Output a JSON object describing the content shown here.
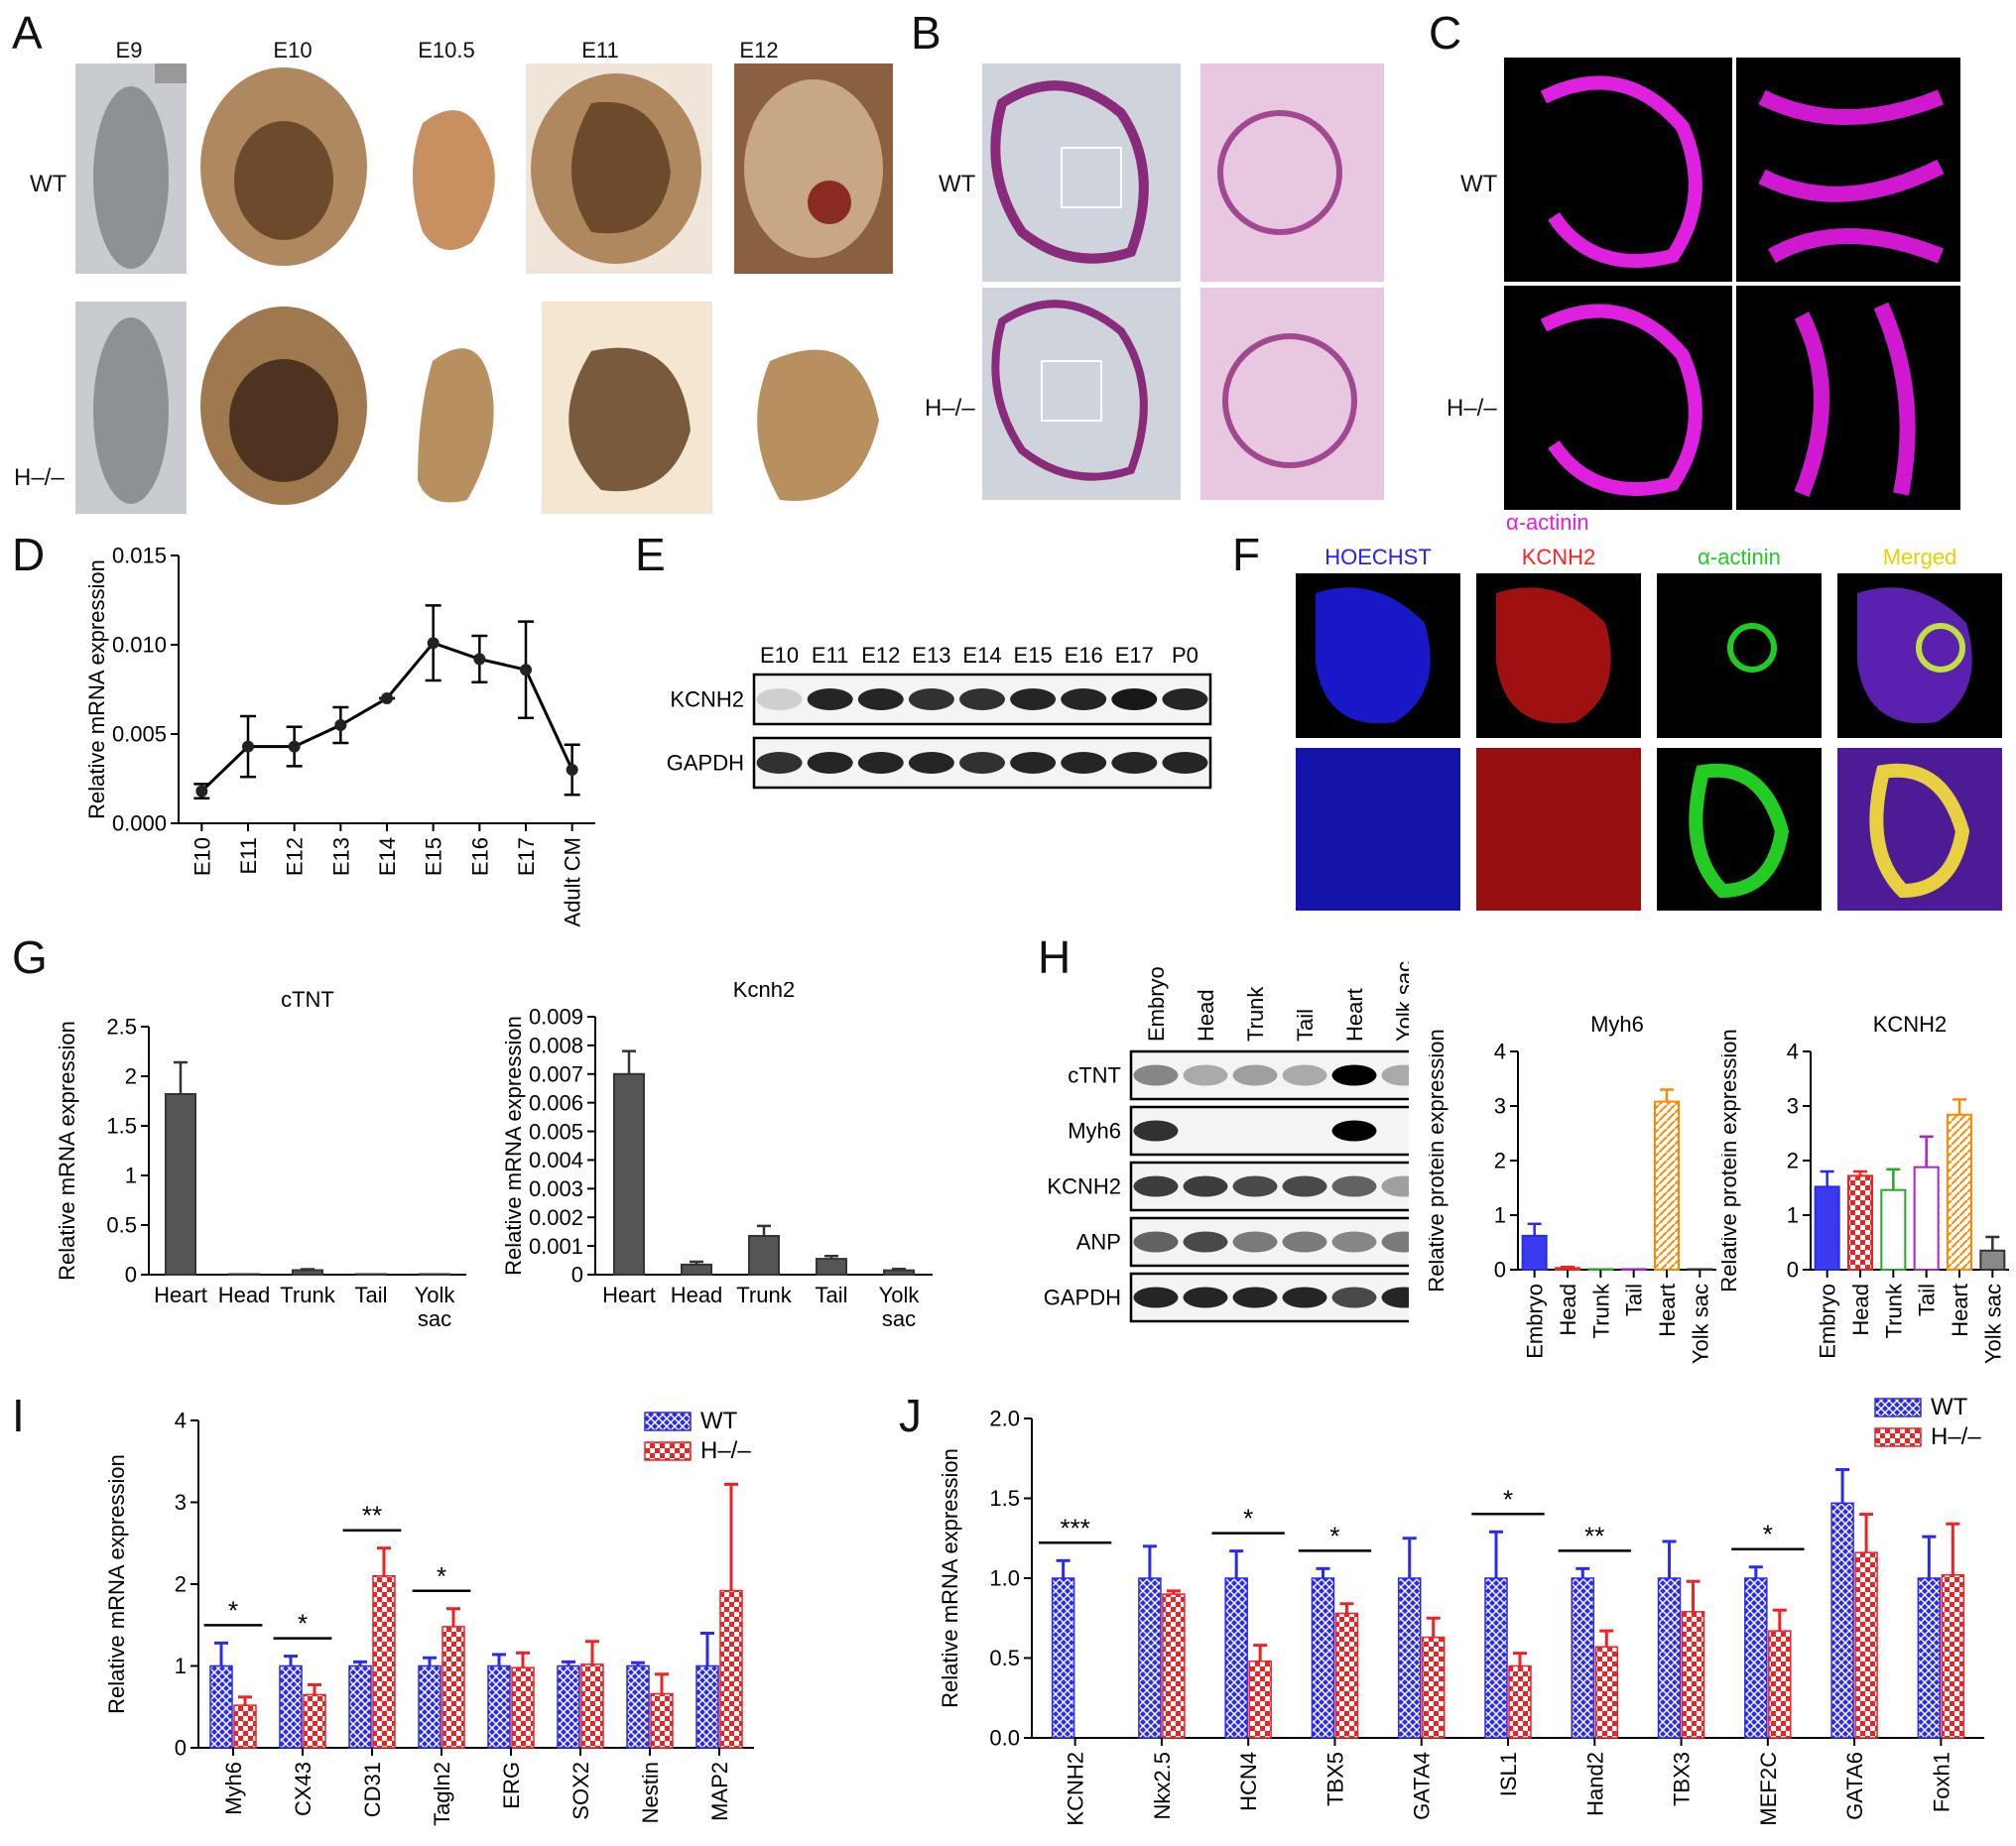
{
  "panels": {
    "A": "A",
    "B": "B",
    "C": "C",
    "D": "D",
    "E": "E",
    "F": "F",
    "G": "G",
    "H": "H",
    "I": "I",
    "J": "J"
  },
  "panelA": {
    "stages": [
      "E9",
      "E10",
      "E10.5",
      "E11",
      "E12"
    ],
    "rows": [
      "WT",
      "H–/–"
    ]
  },
  "panelB": {
    "rows": [
      "WT",
      "H–/–"
    ]
  },
  "panelC": {
    "rows": [
      "WT",
      "H–/–"
    ],
    "stain": "α-actinin"
  },
  "panelE": {
    "lanes": [
      "E10",
      "E11",
      "E12",
      "E13",
      "E14",
      "E15",
      "E16",
      "E17",
      "P0"
    ],
    "rows": [
      "KCNH2",
      "GAPDH"
    ]
  },
  "panelF": {
    "channels": [
      "HOECHST",
      "KCNH2",
      "α-actinin",
      "Merged"
    ],
    "channel_colors": [
      "#1f1fff",
      "#ff2020",
      "#22cc22",
      "#e8d000"
    ]
  },
  "panelH": {
    "lanes": [
      "Embryo",
      "Head",
      "Trunk",
      "Tail",
      "Heart",
      "Yolk sac"
    ],
    "rows": [
      "cTNT",
      "Myh6",
      "KCNH2",
      "ANP",
      "GAPDH"
    ]
  },
  "colors": {
    "wt": "#2a2aee",
    "ko": "#ee2222",
    "gray": "#555555"
  },
  "chart_data": [
    {
      "id": "D",
      "type": "line",
      "categories": [
        "E10",
        "E11",
        "E12",
        "E13",
        "E14",
        "E15",
        "E16",
        "E17",
        "Adult CM"
      ],
      "values": [
        0.0018,
        0.0043,
        0.0043,
        0.0055,
        0.007,
        0.0101,
        0.0092,
        0.0086,
        0.003
      ],
      "errors": [
        0.0004,
        0.0017,
        0.0011,
        0.001,
        0.0,
        0.0021,
        0.0013,
        0.0027,
        0.0014
      ],
      "ylabel": "Relative mRNA expression",
      "yticks": [
        "0.000",
        "0.005",
        "0.010",
        "0.015"
      ],
      "ylim": [
        0,
        0.015
      ]
    },
    {
      "id": "G1",
      "type": "bar",
      "title": "cTNT",
      "categories": [
        "Heart",
        "Head",
        "Trunk",
        "Tail",
        "Yolk sac"
      ],
      "values": [
        1.82,
        0.005,
        0.045,
        0.005,
        0.005
      ],
      "errors": [
        0.32,
        0,
        0.01,
        0,
        0
      ],
      "ylabel": "Relative mRNA expression",
      "yticks": [
        "0",
        "0.5",
        "1",
        "1.5",
        "2",
        "2.5"
      ],
      "ylim": [
        0,
        2.5
      ]
    },
    {
      "id": "G2",
      "type": "bar",
      "title": "Kcnh2",
      "categories": [
        "Heart",
        "Head",
        "Trunk",
        "Tail",
        "Yolk sac"
      ],
      "values": [
        0.007,
        0.00035,
        0.00135,
        0.00055,
        0.00015
      ],
      "errors": [
        0.0008,
        0.0001,
        0.00035,
        0.0001,
        5e-05
      ],
      "ylabel": "Relative mRNA expression",
      "yticks": [
        "0",
        "0.001",
        "0.002",
        "0.003",
        "0.004",
        "0.005",
        "0.006",
        "0.007",
        "0.008",
        "0.009"
      ],
      "ylim": [
        0,
        0.009
      ]
    },
    {
      "id": "H1",
      "type": "bar",
      "title": "Myh6",
      "categories": [
        "Embryo",
        "Head",
        "Trunk",
        "Tail",
        "Heart",
        "Yolk sac"
      ],
      "values": [
        0.62,
        0.03,
        0.01,
        0.01,
        3.08,
        0.01
      ],
      "errors": [
        0.22,
        0.02,
        0,
        0,
        0.22,
        0
      ],
      "colors": [
        "#2a2aee",
        "#ee2222",
        "#22aa22",
        "#aa22cc",
        "#ff8800",
        "#333333"
      ],
      "ylabel": "Relative protein expression",
      "yticks": [
        "0",
        "1",
        "2",
        "3",
        "4"
      ],
      "ylim": [
        0,
        4
      ]
    },
    {
      "id": "H2",
      "type": "bar",
      "title": "KCNH2",
      "categories": [
        "Embryo",
        "Head",
        "Trunk",
        "Tail",
        "Heart",
        "Yolk sac"
      ],
      "values": [
        1.52,
        1.72,
        1.46,
        1.88,
        2.84,
        0.35
      ],
      "errors": [
        0.28,
        0.08,
        0.38,
        0.56,
        0.28,
        0.25
      ],
      "colors": [
        "#2a2aee",
        "#ee2222",
        "#22aa22",
        "#aa22cc",
        "#ff8800",
        "#333333"
      ],
      "ylabel": "Relative protein expression",
      "yticks": [
        "0",
        "1",
        "2",
        "3",
        "4"
      ],
      "ylim": [
        0,
        4
      ]
    },
    {
      "id": "I",
      "type": "bar",
      "categories": [
        "Myh6",
        "CX43",
        "CD31",
        "Tagln2",
        "ERG",
        "SOX2",
        "Nestin",
        "MAP2"
      ],
      "series": [
        {
          "name": "WT",
          "values": [
            1.0,
            1.0,
            1.0,
            1.0,
            1.0,
            1.0,
            1.0,
            1.0
          ],
          "errors": [
            0.28,
            0.12,
            0.05,
            0.1,
            0.14,
            0.05,
            0.04,
            0.4
          ]
        },
        {
          "name": "H–/–",
          "values": [
            0.52,
            0.65,
            2.1,
            1.48,
            0.98,
            1.02,
            0.66,
            1.92
          ],
          "errors": [
            0.1,
            0.12,
            0.34,
            0.22,
            0.18,
            0.28,
            0.24,
            1.3
          ]
        }
      ],
      "sig": [
        {
          "cat": 0,
          "label": "*"
        },
        {
          "cat": 1,
          "label": "*"
        },
        {
          "cat": 2,
          "label": "**"
        },
        {
          "cat": 3,
          "label": "*"
        }
      ],
      "ylabel": "Relative mRNA expression",
      "yticks": [
        "0",
        "1",
        "2",
        "3",
        "4"
      ],
      "ylim": [
        0,
        4
      ]
    },
    {
      "id": "J",
      "type": "bar",
      "categories": [
        "KCNH2",
        "Nkx2.5",
        "HCN4",
        "TBX5",
        "GATA4",
        "ISL1",
        "Hand2",
        "TBX3",
        "MEF2C",
        "GATA6",
        "Foxh1"
      ],
      "series": [
        {
          "name": "WT",
          "values": [
            1.0,
            1.0,
            1.0,
            1.0,
            1.0,
            1.0,
            1.0,
            1.0,
            1.0,
            1.47,
            1.0
          ],
          "errors": [
            0.11,
            0.2,
            0.17,
            0.06,
            0.25,
            0.29,
            0.06,
            0.23,
            0.07,
            0.21,
            0.26
          ]
        },
        {
          "name": "H–/–",
          "values": [
            0.0,
            0.9,
            0.48,
            0.78,
            0.63,
            0.45,
            0.57,
            0.79,
            0.67,
            1.16,
            1.02
          ],
          "errors": [
            0,
            0.02,
            0.1,
            0.06,
            0.12,
            0.08,
            0.1,
            0.19,
            0.13,
            0.24,
            0.32
          ]
        }
      ],
      "sig": [
        {
          "cat": 0,
          "label": "***"
        },
        {
          "cat": 2,
          "label": "*"
        },
        {
          "cat": 3,
          "label": "*"
        },
        {
          "cat": 5,
          "label": "*"
        },
        {
          "cat": 6,
          "label": "**"
        },
        {
          "cat": 8,
          "label": "*"
        }
      ],
      "ylabel": "Relative mRNA expression",
      "yticks": [
        "0.0",
        "0.5",
        "1.0",
        "1.5",
        "2.0"
      ],
      "ylim": [
        0,
        2
      ]
    }
  ]
}
